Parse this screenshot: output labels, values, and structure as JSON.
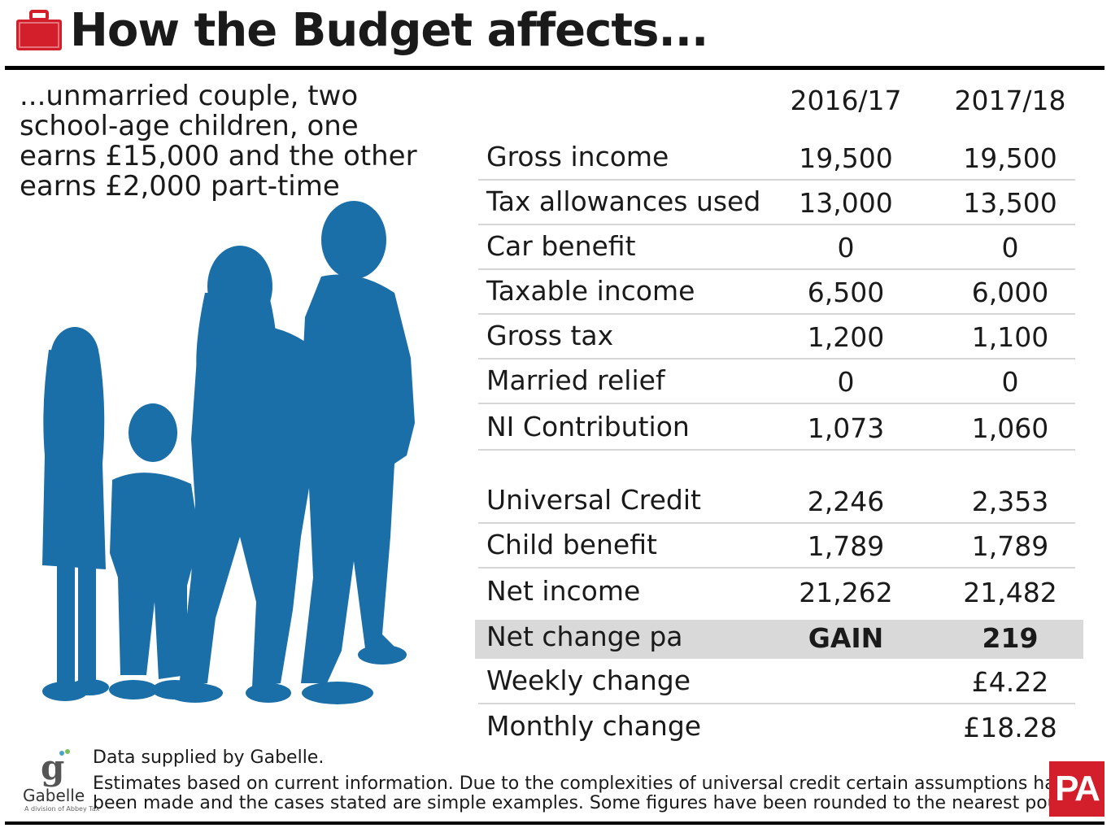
{
  "header": {
    "title": "How the Budget affects...",
    "icon": "briefcase-icon",
    "accent_color": "#d21f2b"
  },
  "subtitle": "...unmarried couple, two school-age children, one earns £15,000 and the other earns £2,000 part-time",
  "silhouette_color": "#1b6fa8",
  "table": {
    "columns": [
      "2016/17",
      "2017/18"
    ],
    "rows": [
      {
        "label": "Gross income",
        "v1": "19,500",
        "v2": "19,500"
      },
      {
        "label": "Tax allowances used",
        "v1": "13,000",
        "v2": "13,500"
      },
      {
        "label": "Car benefit",
        "v1": "0",
        "v2": "0"
      },
      {
        "label": "Taxable income",
        "v1": "6,500",
        "v2": "6,000"
      },
      {
        "label": "Gross tax",
        "v1": "1,200",
        "v2": "1,100"
      },
      {
        "label": "Married relief",
        "v1": "0",
        "v2": "0"
      },
      {
        "label": "NI Contribution",
        "v1": "1,073",
        "v2": "1,060"
      },
      {
        "label": "Universal Credit",
        "v1": "2,246",
        "v2": "2,353"
      },
      {
        "label": "Child benefit",
        "v1": "1,789",
        "v2": "1,789"
      },
      {
        "label": "Net income",
        "v1": "21,262",
        "v2": "21,482"
      },
      {
        "label": "Net change pa",
        "v1": "GAIN",
        "v2": "219"
      },
      {
        "label": "Weekly change",
        "v1": "",
        "v2": "£4.22"
      },
      {
        "label": "Monthly change",
        "v1": "",
        "v2": "£18.28"
      }
    ]
  },
  "footer": {
    "logo_name": "Gabelle",
    "logo_sub": "A division of Abbey Tax",
    "source": "Data supplied by Gabelle.",
    "note_line1": "Estimates based on current information. Due to the complexities of universal credit certain assumptions have",
    "note_line2": "been made and the cases stated are simple examples. Some figures have been rounded to the nearest pound",
    "pa_logo": "PA"
  }
}
